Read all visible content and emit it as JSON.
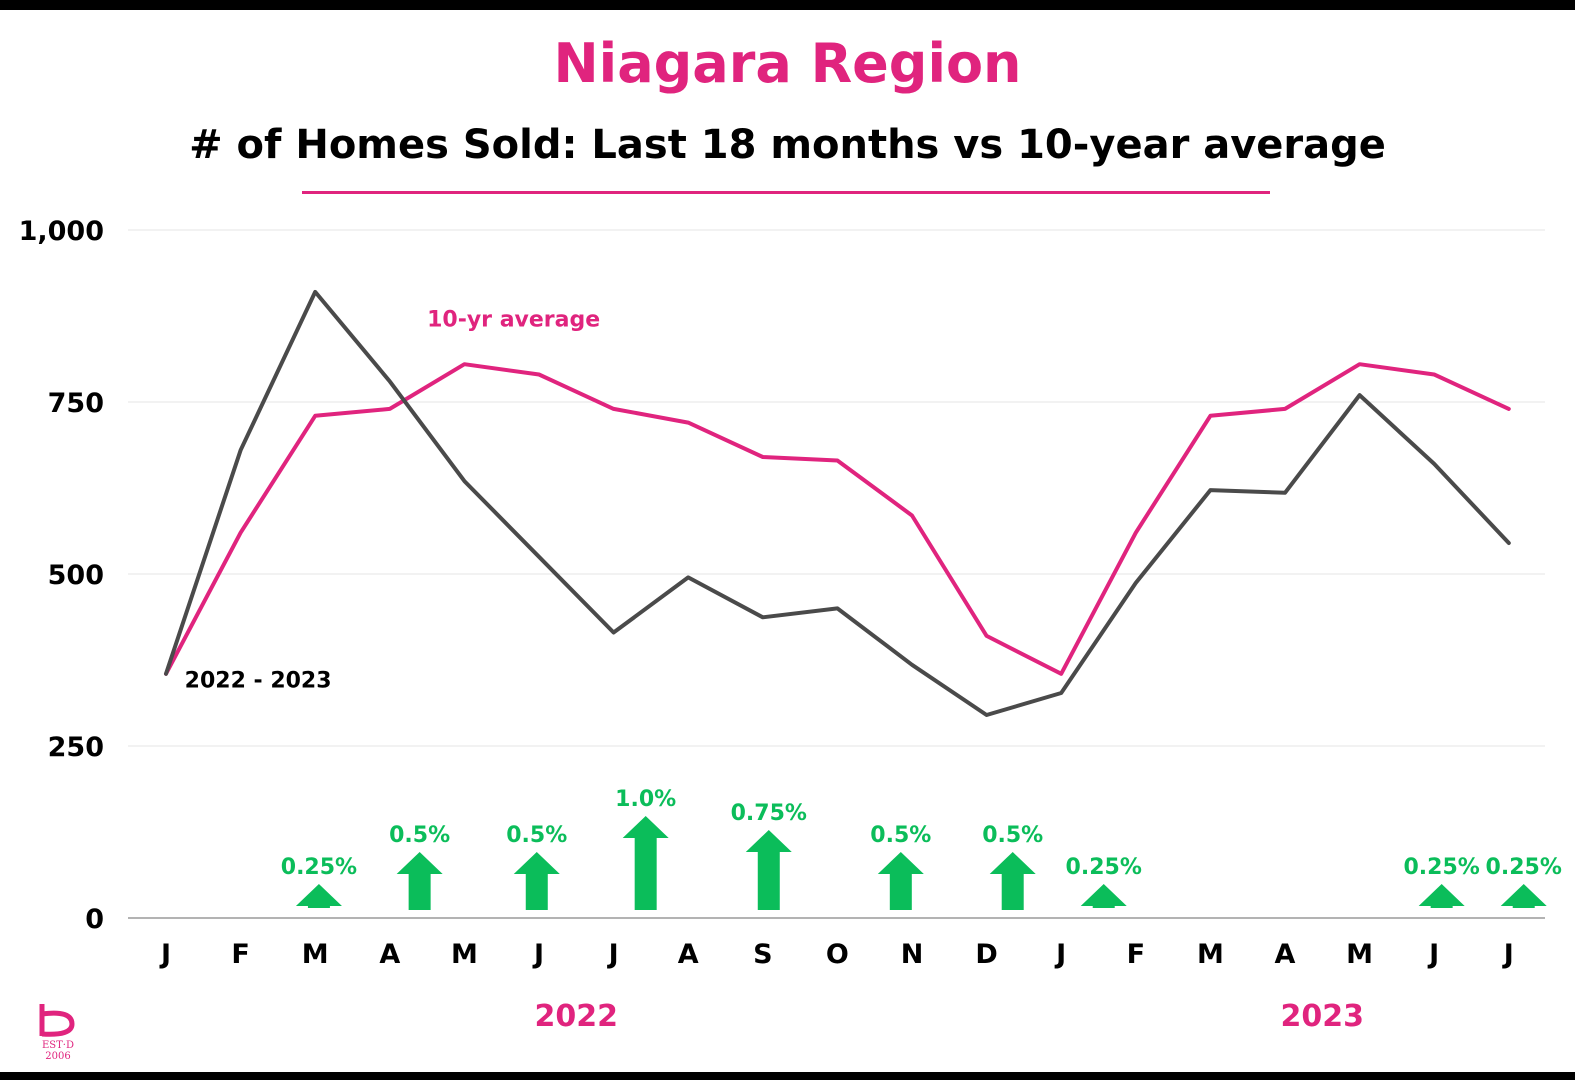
{
  "colors": {
    "accent": "#e0247e",
    "black_series": "#4a4a4a",
    "arrow_green": "#0bbd5a",
    "grid": "#e4e4e4",
    "axis": "#9a9a9a"
  },
  "header": {
    "title": "Niagara Region",
    "subtitle": "# of Homes Sold:  Last 18 months vs 10-year average"
  },
  "logo": {
    "icon": "brand-b-logo-icon",
    "text": "EST·D 2006"
  },
  "chart_data": {
    "type": "line",
    "categories": [
      "J",
      "F",
      "M",
      "A",
      "M",
      "J",
      "J",
      "A",
      "S",
      "O",
      "N",
      "D",
      "J",
      "F",
      "M",
      "A",
      "M",
      "J",
      "J"
    ],
    "year_labels": [
      {
        "label": "2022",
        "center_index": 5.5
      },
      {
        "label": "2023",
        "center_index": 15.5
      }
    ],
    "ylim": [
      0,
      1000
    ],
    "yticks": [
      0,
      250,
      500,
      750,
      1000
    ],
    "ytick_labels": [
      "0",
      "250",
      "500",
      "750",
      "1,000"
    ],
    "grid": true,
    "series": [
      {
        "name": "2022 - 2023",
        "color": "#4a4a4a",
        "label_pos": {
          "index": 0.25,
          "value": 335
        },
        "values": [
          355,
          680,
          910,
          780,
          635,
          525,
          415,
          495,
          437,
          450,
          368,
          295,
          327,
          487,
          622,
          618,
          760,
          660,
          545
        ]
      },
      {
        "name": "10-yr average",
        "color": "#e0247e",
        "label_pos": {
          "index": 3.5,
          "value": 860
        },
        "values": [
          355,
          560,
          730,
          740,
          805,
          790,
          740,
          720,
          670,
          665,
          585,
          410,
          355,
          560,
          730,
          740,
          805,
          790,
          740
        ]
      }
    ],
    "annotations": [
      {
        "label": "0.25%",
        "index": 2.05,
        "value": 0.25
      },
      {
        "label": "0.5%",
        "index": 3.4,
        "value": 0.5
      },
      {
        "label": "0.5%",
        "index": 4.97,
        "value": 0.5
      },
      {
        "label": "1.0%",
        "index": 6.43,
        "value": 1.0
      },
      {
        "label": "0.75%",
        "index": 8.08,
        "value": 0.75
      },
      {
        "label": "0.5%",
        "index": 9.85,
        "value": 0.5
      },
      {
        "label": "0.5%",
        "index": 11.35,
        "value": 0.5
      },
      {
        "label": "0.25%",
        "index": 12.57,
        "value": 0.25
      },
      {
        "label": "0.25%",
        "index": 17.1,
        "value": 0.25
      },
      {
        "label": "0.25%",
        "index": 18.2,
        "value": 0.25
      }
    ]
  }
}
